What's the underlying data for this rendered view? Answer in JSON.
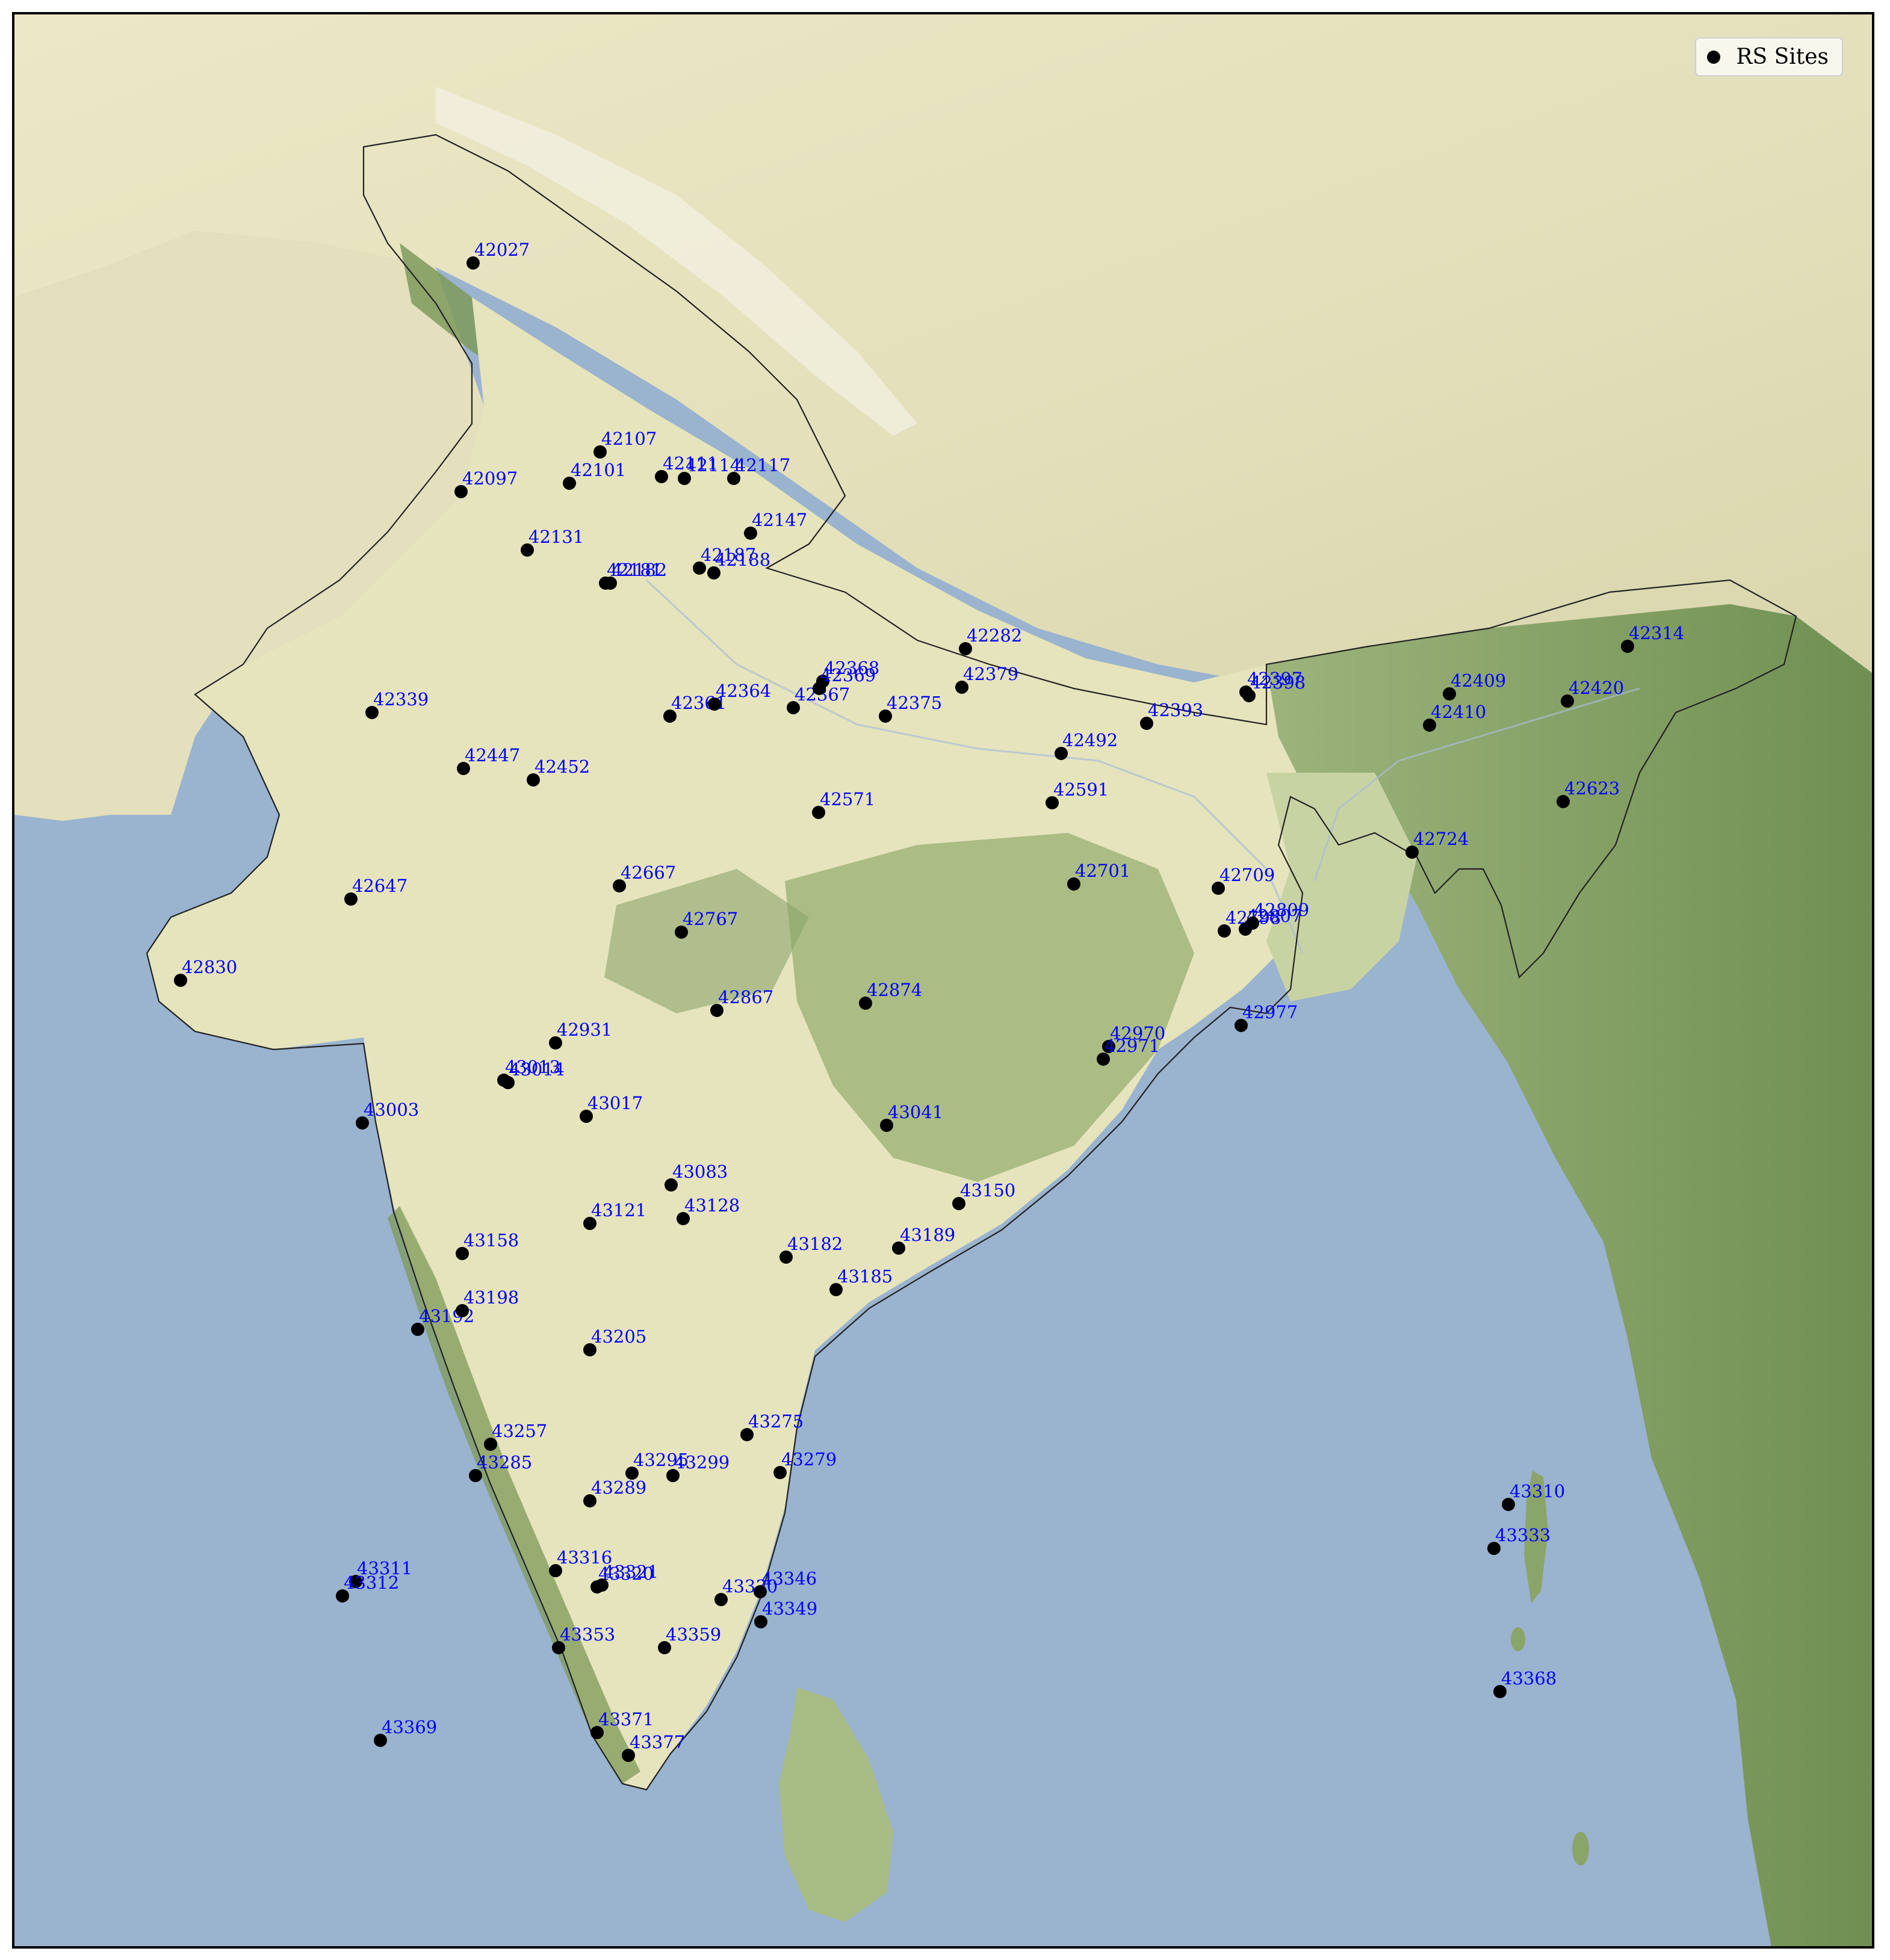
{
  "legend": {
    "label": "RS Sites"
  },
  "colors": {
    "ocean": "#9ab3cf",
    "plain": "#ece9c8",
    "tibet": "#e5e1bd",
    "green": "#8aa56a",
    "darkgreen": "#5f7e45",
    "label": "#0000ff",
    "marker": "#000000",
    "border": "#222222"
  },
  "sites": [
    {
      "id": "42027"
    },
    {
      "id": "42097"
    },
    {
      "id": "42101"
    },
    {
      "id": "42107"
    },
    {
      "id": "42111"
    },
    {
      "id": "42114"
    },
    {
      "id": "42117"
    },
    {
      "id": "42131"
    },
    {
      "id": "42147"
    },
    {
      "id": "42181"
    },
    {
      "id": "42182"
    },
    {
      "id": "42187"
    },
    {
      "id": "42188"
    },
    {
      "id": "42282"
    },
    {
      "id": "42314"
    },
    {
      "id": "42339"
    },
    {
      "id": "42361"
    },
    {
      "id": "42364"
    },
    {
      "id": "42367"
    },
    {
      "id": "42368"
    },
    {
      "id": "42369"
    },
    {
      "id": "42375"
    },
    {
      "id": "42379"
    },
    {
      "id": "42393"
    },
    {
      "id": "42397"
    },
    {
      "id": "42398"
    },
    {
      "id": "42409"
    },
    {
      "id": "42410"
    },
    {
      "id": "42420"
    },
    {
      "id": "42447"
    },
    {
      "id": "42452"
    },
    {
      "id": "42492"
    },
    {
      "id": "42571"
    },
    {
      "id": "42591"
    },
    {
      "id": "42623"
    },
    {
      "id": "42647"
    },
    {
      "id": "42667"
    },
    {
      "id": "42701"
    },
    {
      "id": "42709"
    },
    {
      "id": "42724"
    },
    {
      "id": "42767"
    },
    {
      "id": "42798"
    },
    {
      "id": "42807"
    },
    {
      "id": "42809"
    },
    {
      "id": "42830"
    },
    {
      "id": "42867"
    },
    {
      "id": "42874"
    },
    {
      "id": "42931"
    },
    {
      "id": "42970"
    },
    {
      "id": "42971"
    },
    {
      "id": "42977"
    },
    {
      "id": "43003"
    },
    {
      "id": "43013"
    },
    {
      "id": "43014"
    },
    {
      "id": "43017"
    },
    {
      "id": "43041"
    },
    {
      "id": "43083"
    },
    {
      "id": "43121"
    },
    {
      "id": "43128"
    },
    {
      "id": "43150"
    },
    {
      "id": "43158"
    },
    {
      "id": "43182"
    },
    {
      "id": "43185"
    },
    {
      "id": "43189"
    },
    {
      "id": "43192"
    },
    {
      "id": "43198"
    },
    {
      "id": "43205"
    },
    {
      "id": "43257"
    },
    {
      "id": "43275"
    },
    {
      "id": "43279"
    },
    {
      "id": "43285"
    },
    {
      "id": "43289"
    },
    {
      "id": "43295"
    },
    {
      "id": "43299"
    },
    {
      "id": "43310"
    },
    {
      "id": "43311"
    },
    {
      "id": "43312"
    },
    {
      "id": "43316"
    },
    {
      "id": "43320"
    },
    {
      "id": "43321"
    },
    {
      "id": "43330"
    },
    {
      "id": "43333"
    },
    {
      "id": "43346"
    },
    {
      "id": "43349"
    },
    {
      "id": "43353"
    },
    {
      "id": "43359"
    },
    {
      "id": "43368"
    },
    {
      "id": "43369"
    },
    {
      "id": "43371"
    },
    {
      "id": "43377"
    }
  ]
}
